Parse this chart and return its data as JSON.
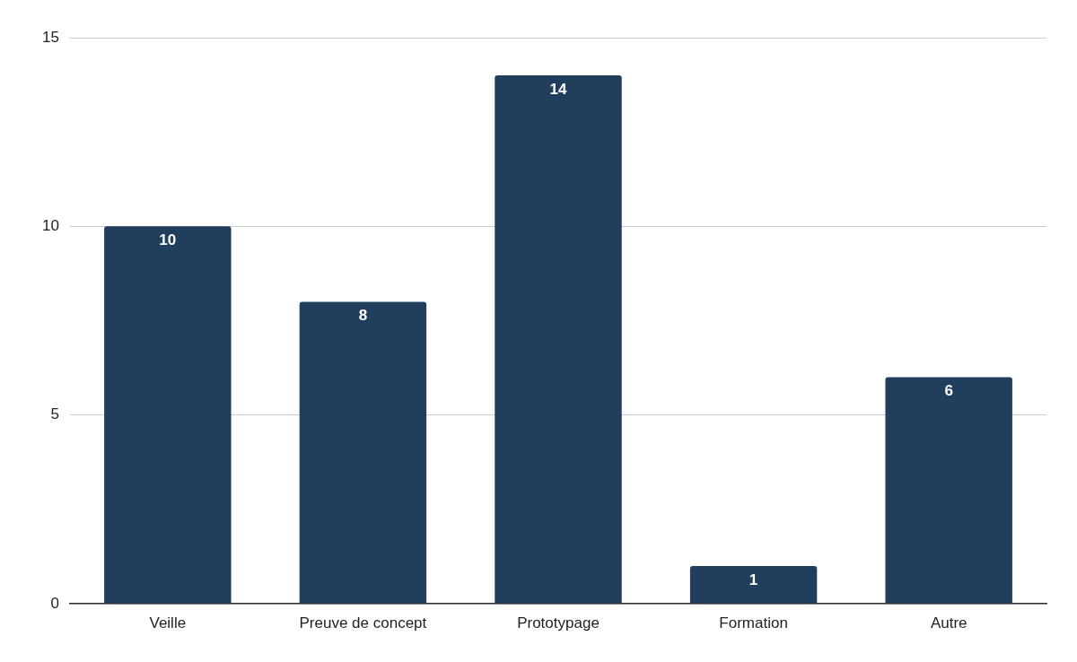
{
  "chart_data": {
    "type": "bar",
    "categories": [
      "Veille",
      "Preuve de concept",
      "Prototypage",
      "Formation",
      "Autre"
    ],
    "values": [
      10,
      8,
      14,
      1,
      6
    ],
    "color": "#213f5c",
    "ylim": [
      0,
      15
    ],
    "yticks": [
      0,
      5,
      10,
      15
    ],
    "grid": "y",
    "legend": false,
    "data_labels": true
  }
}
